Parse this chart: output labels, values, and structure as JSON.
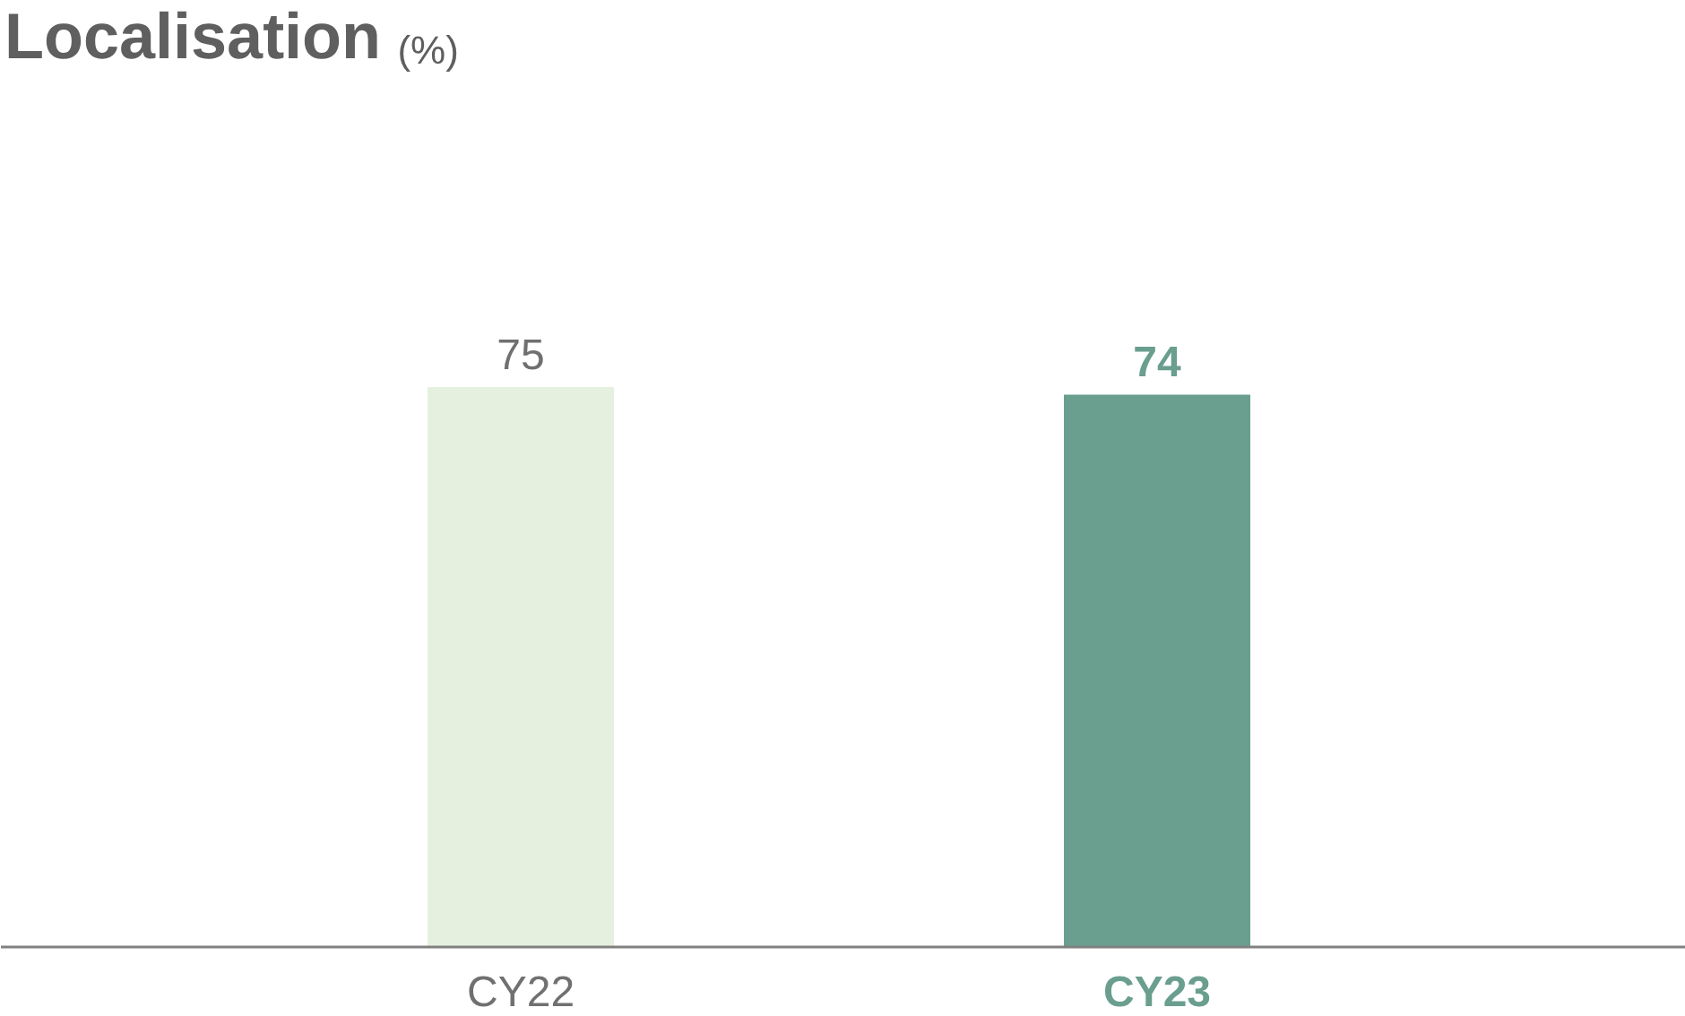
{
  "chart_data": {
    "type": "bar",
    "title": "Localisation",
    "annotations": [
      "(%)"
    ],
    "categories": [
      "CY22",
      "CY23"
    ],
    "values": [
      75,
      74
    ],
    "colors": [
      "#e5f0de",
      "#6a9e8f"
    ],
    "data_labels": true,
    "grid": false
  }
}
